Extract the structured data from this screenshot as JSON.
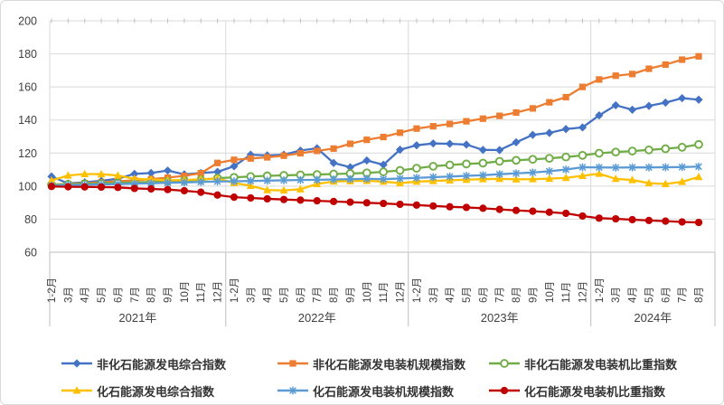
{
  "chart_data": {
    "type": "line",
    "title": "",
    "xlabel": "",
    "ylabel": "",
    "ylim": [
      60,
      200
    ],
    "yticks": [
      60,
      80,
      100,
      120,
      140,
      160,
      180,
      200
    ],
    "grid": true,
    "legend_position": "bottom",
    "groups": [
      {
        "year": "2021年",
        "categories": [
          "1-2月",
          "3月",
          "4月",
          "5月",
          "6月",
          "7月",
          "8月",
          "9月",
          "10月",
          "11月",
          "12月"
        ]
      },
      {
        "year": "2022年",
        "categories": [
          "1-2月",
          "3月",
          "4月",
          "5月",
          "6月",
          "7月",
          "8月",
          "9月",
          "10月",
          "11月",
          "12月"
        ]
      },
      {
        "year": "2023年",
        "categories": [
          "1-2月",
          "3月",
          "4月",
          "5月",
          "6月",
          "7月",
          "8月",
          "9月",
          "10月",
          "11月",
          "12月"
        ]
      },
      {
        "year": "2024年",
        "categories": [
          "1-2月",
          "3月",
          "4月",
          "5月",
          "6月",
          "7月",
          "8月"
        ]
      }
    ],
    "series": [
      {
        "name": "非化石能源发电综合指数",
        "color": "#4472C4",
        "marker": "diamond",
        "values": [
          105.8,
          101.6,
          102.3,
          103.2,
          104.5,
          107.4,
          107.9,
          109.4,
          107.1,
          107.9,
          108.6,
          112.0,
          119.0,
          118.6,
          119.0,
          121.5,
          122.9,
          114.0,
          111.4,
          115.5,
          112.9,
          122.0,
          124.7,
          125.8,
          125.6,
          125.1,
          121.9,
          121.8,
          126.5,
          131.0,
          132.2,
          134.5,
          135.5,
          142.8,
          148.9,
          146.2,
          148.5,
          150.5,
          153.2,
          152.3
        ]
      },
      {
        "name": "非化石能源发电装机规模指数",
        "color": "#ED7D31",
        "marker": "square",
        "values": [
          100.9,
          101.3,
          101.8,
          102.3,
          102.9,
          103.5,
          104.2,
          105.1,
          106.2,
          107.8,
          114.0,
          115.9,
          116.7,
          117.4,
          118.4,
          119.9,
          121.3,
          122.7,
          125.6,
          128.0,
          129.7,
          132.3,
          134.8,
          136.2,
          137.6,
          139.2,
          140.8,
          142.5,
          144.5,
          147.0,
          150.7,
          153.8,
          160.0,
          164.5,
          166.8,
          167.8,
          171.0,
          173.5,
          176.5,
          178.5
        ]
      },
      {
        "name": "非化石能源发电装机比重指数",
        "color": "#70AD47",
        "marker": "circle-open",
        "values": [
          100.9,
          101.1,
          101.4,
          101.6,
          101.9,
          102.2,
          102.5,
          102.9,
          103.3,
          103.8,
          104.8,
          105.3,
          105.8,
          106.2,
          106.5,
          106.8,
          107.0,
          107.3,
          107.6,
          108.0,
          108.6,
          109.5,
          110.8,
          112.0,
          112.8,
          113.4,
          113.9,
          115.0,
          115.6,
          116.2,
          116.8,
          117.6,
          118.6,
          119.9,
          120.6,
          121.2,
          121.9,
          122.6,
          123.5,
          125.2
        ]
      },
      {
        "name": "化石能源发电综合指数",
        "color": "#FFC000",
        "marker": "triangle",
        "values": [
          103.4,
          106.4,
          107.3,
          107.2,
          106.4,
          104.4,
          104.0,
          103.5,
          103.7,
          104.1,
          104.6,
          101.9,
          100.2,
          97.6,
          97.4,
          98.1,
          101.3,
          102.8,
          103.0,
          103.2,
          102.7,
          101.8,
          102.7,
          103.1,
          103.5,
          103.9,
          104.2,
          104.4,
          104.1,
          104.2,
          104.5,
          105.0,
          106.2,
          107.5,
          104.4,
          103.7,
          101.8,
          101.3,
          102.6,
          105.5
        ]
      },
      {
        "name": "化石能源发电装机规模指数",
        "color": "#5B9BD5",
        "marker": "asterisk",
        "values": [
          100.4,
          100.6,
          100.8,
          101.0,
          101.2,
          101.5,
          101.7,
          102.0,
          102.2,
          102.5,
          102.8,
          102.9,
          103.1,
          103.3,
          103.5,
          103.7,
          103.8,
          104.0,
          104.2,
          104.4,
          104.2,
          104.6,
          105.0,
          105.4,
          105.8,
          106.2,
          106.6,
          107.2,
          107.7,
          108.2,
          109.0,
          110.0,
          111.4,
          111.3,
          111.2,
          111.3,
          111.3,
          111.4,
          111.5,
          111.8
        ]
      },
      {
        "name": "化石能源发电装机比重指数",
        "color": "#C00000",
        "marker": "circle",
        "values": [
          99.8,
          99.6,
          99.5,
          99.4,
          99.2,
          98.6,
          98.3,
          97.9,
          97.2,
          96.3,
          94.6,
          93.3,
          92.8,
          92.3,
          91.9,
          91.5,
          91.1,
          90.7,
          90.3,
          89.9,
          89.5,
          89.0,
          88.5,
          88.0,
          87.5,
          87.1,
          86.6,
          85.9,
          85.3,
          84.8,
          84.2,
          83.5,
          81.9,
          80.6,
          80.2,
          79.7,
          79.2,
          78.8,
          78.3,
          78.0
        ]
      }
    ],
    "style": {
      "gridline_color": "#D9D9D9",
      "axis_line_color": "#BFBFBF",
      "tick_label_color": "#404040",
      "background": "#FFFFFF"
    }
  }
}
